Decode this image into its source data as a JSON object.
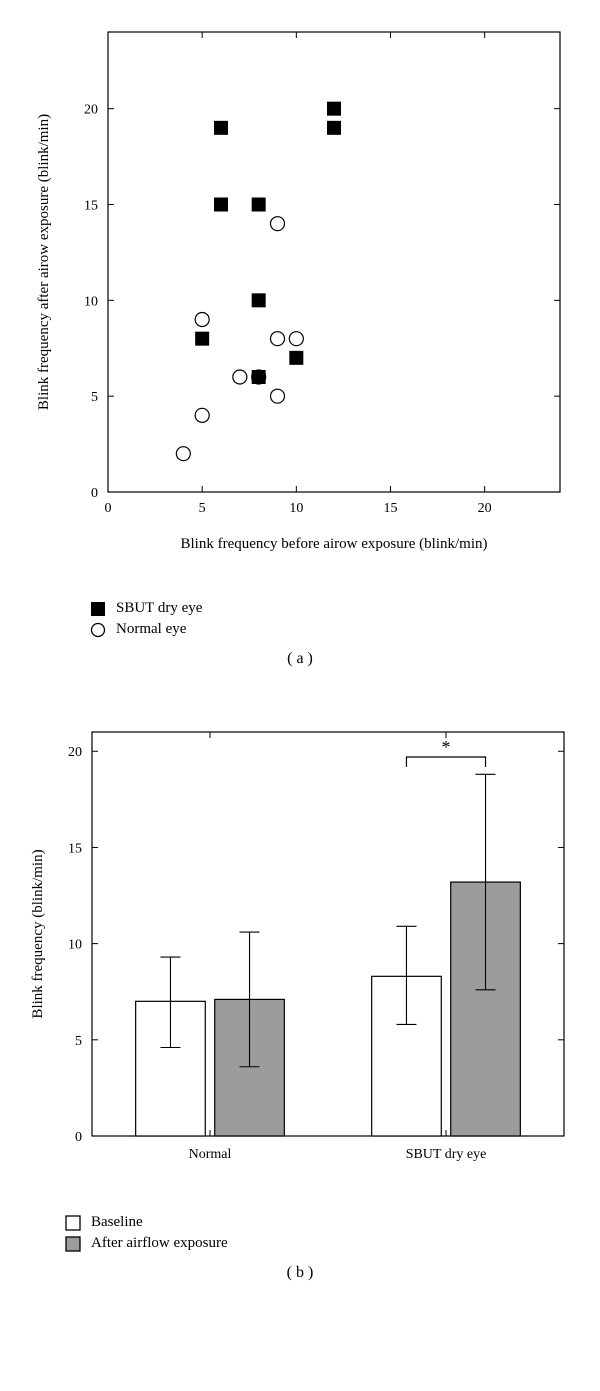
{
  "panelA": {
    "type": "scatter",
    "xlabel": "Blink frequency before airow exposure (blink/min)",
    "ylabel": "Blink frequency after airow exposure (blink/min)",
    "label_fontsize": 15,
    "tick_fontsize": 14,
    "xlim": [
      0,
      24
    ],
    "ylim": [
      0,
      24
    ],
    "xticks": [
      0,
      5,
      10,
      15,
      20
    ],
    "yticks": [
      0,
      5,
      10,
      15,
      20
    ],
    "background_color": "#ffffff",
    "axis_color": "#000000",
    "tick_length": 6,
    "tick_in": true,
    "series": [
      {
        "name": "SBUT dry eye",
        "marker": "square-filled",
        "size": 14,
        "color": "#000000",
        "points": [
          [
            5,
            8
          ],
          [
            6,
            19
          ],
          [
            6,
            15
          ],
          [
            8,
            6
          ],
          [
            8,
            15
          ],
          [
            8,
            10
          ],
          [
            10,
            7
          ],
          [
            12,
            19
          ],
          [
            12,
            20
          ]
        ]
      },
      {
        "name": "Normal eye",
        "marker": "circle-open",
        "size": 14,
        "color": "#000000",
        "stroke_width": 1.2,
        "points": [
          [
            4,
            2
          ],
          [
            5,
            4
          ],
          [
            5,
            9
          ],
          [
            7,
            6
          ],
          [
            8,
            6
          ],
          [
            9,
            5
          ],
          [
            9,
            8
          ],
          [
            9,
            14
          ],
          [
            10,
            8
          ]
        ]
      }
    ],
    "panel_label": "( a )"
  },
  "panelB": {
    "type": "bar",
    "ylabel": "Blink frequency (blink/min)",
    "label_fontsize": 15,
    "tick_fontsize": 14,
    "ylim": [
      0,
      21
    ],
    "yticks": [
      0,
      5,
      10,
      15,
      20
    ],
    "categories": [
      "Normal",
      "SBUT dry eye"
    ],
    "background_color": "#ffffff",
    "axis_color": "#000000",
    "tick_length": 6,
    "bar_width": 0.295,
    "group_gap": 0.04,
    "series": [
      {
        "name": "Baseline",
        "fill": "#ffffff",
        "stroke": "#000000",
        "values": [
          7.0,
          8.3
        ],
        "err_upper": [
          2.3,
          2.6
        ],
        "err_lower": [
          2.4,
          2.5
        ]
      },
      {
        "name": "After airflow exposure",
        "fill": "#9c9c9c",
        "stroke": "#000000",
        "values": [
          7.1,
          13.2
        ],
        "err_upper": [
          3.5,
          5.6
        ],
        "err_lower": [
          3.5,
          5.6
        ]
      }
    ],
    "sig_marker": {
      "group_index": 1,
      "label": "*",
      "y": 19.7,
      "fontsize": 18
    },
    "panel_label": "( b )"
  }
}
